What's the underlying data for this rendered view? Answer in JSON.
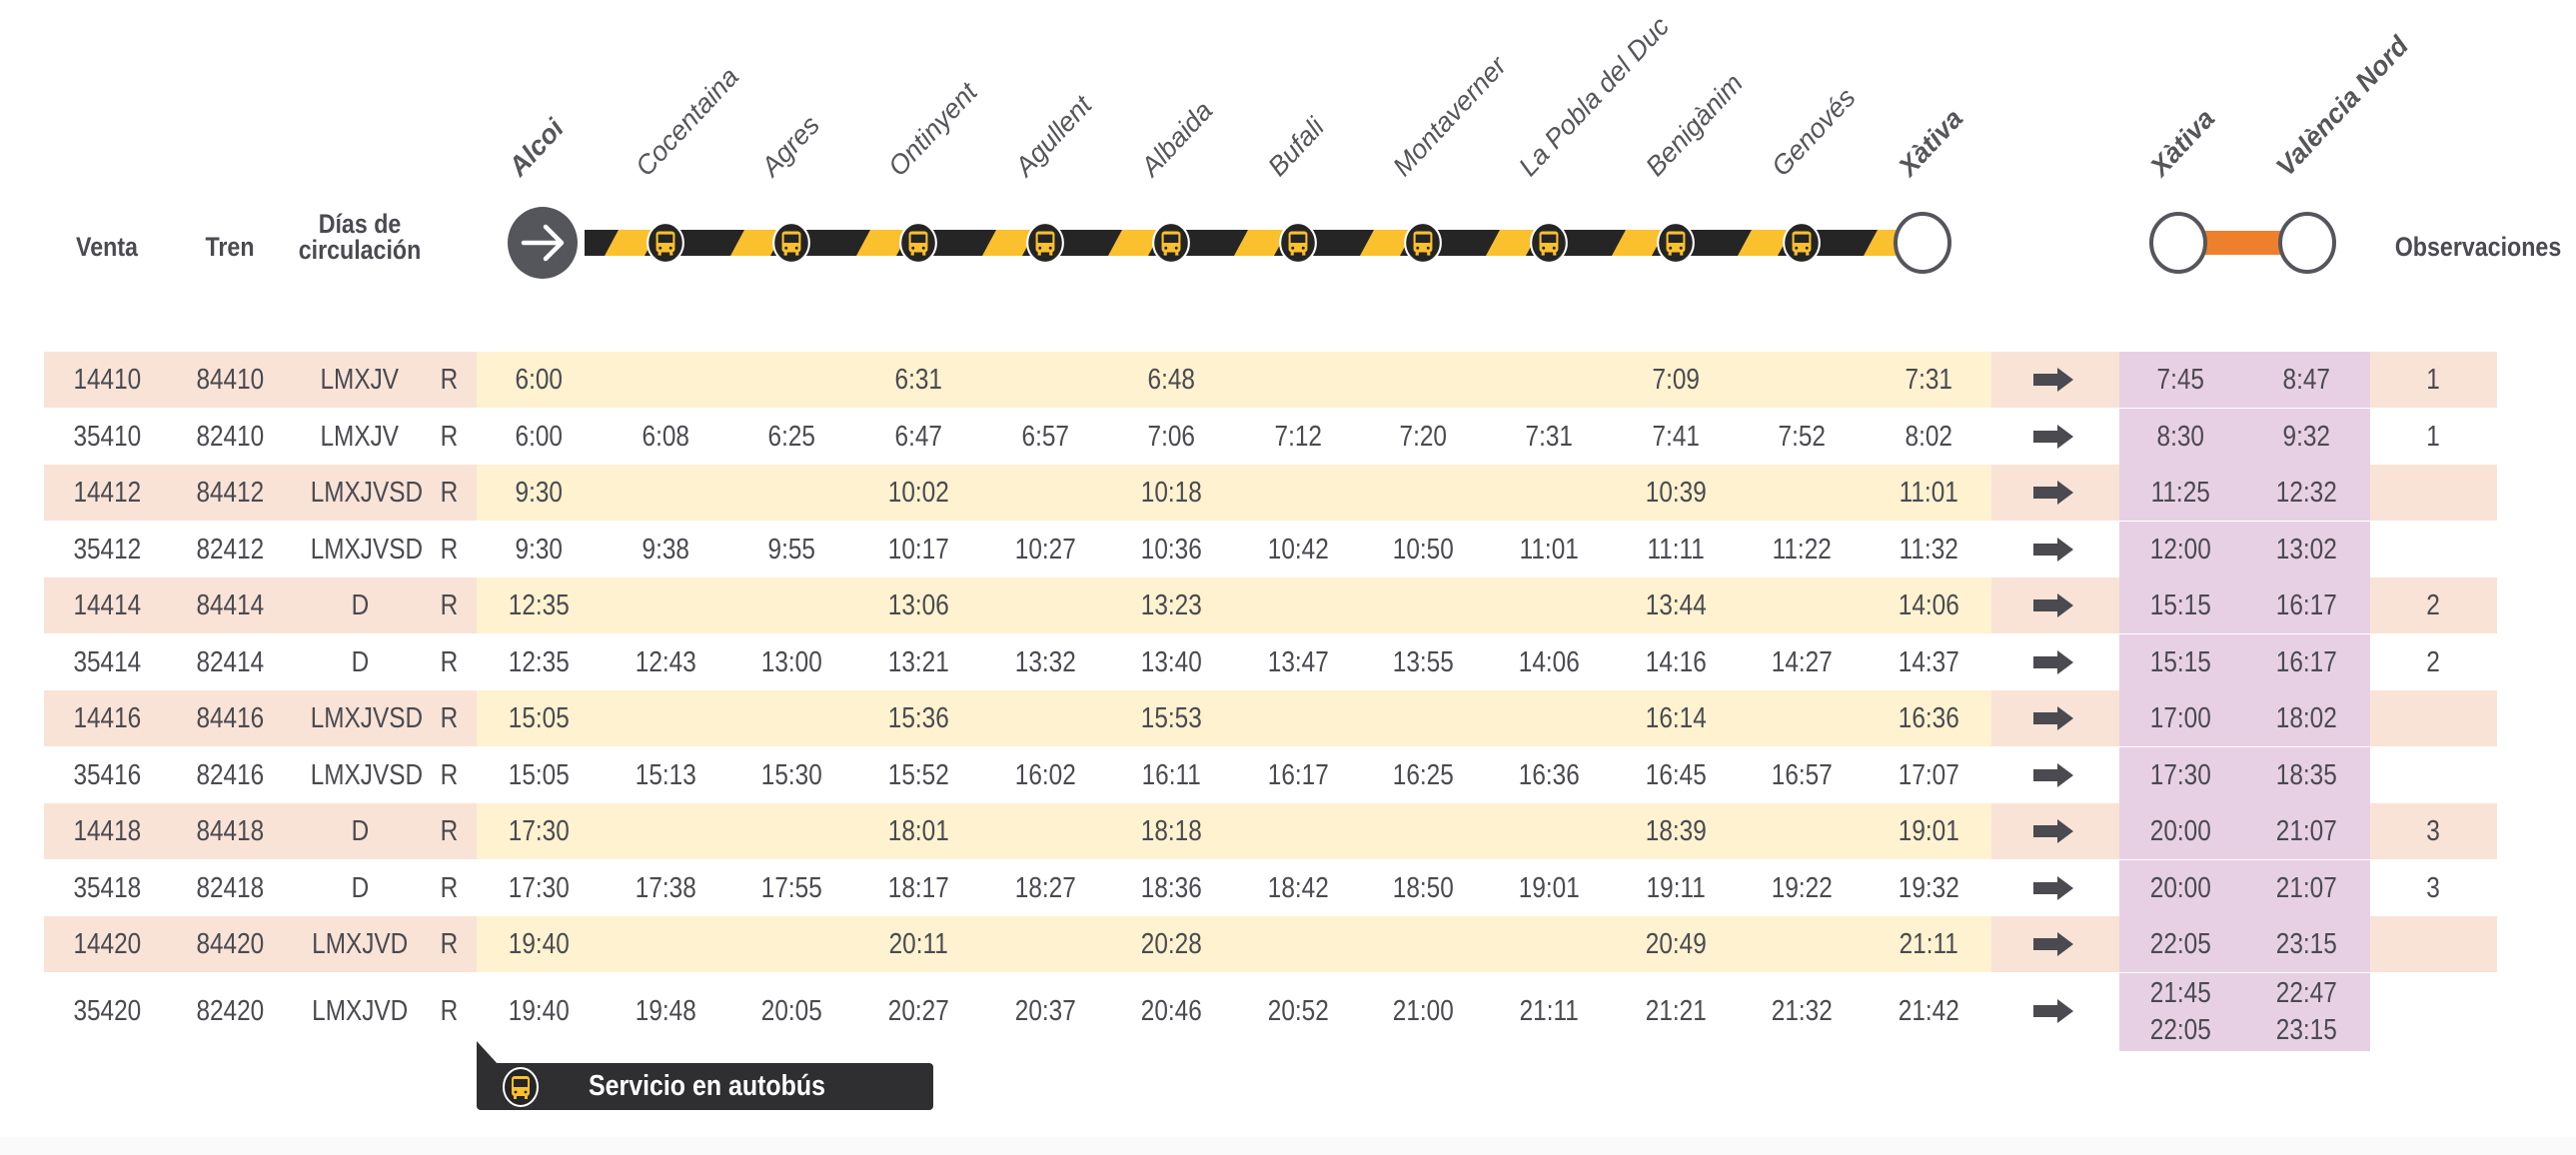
{
  "headers": {
    "venta": "Venta",
    "tren": "Tren",
    "dias_line1": "Días de",
    "dias_line2": "circulación",
    "observaciones": "Observaciones"
  },
  "stations": [
    {
      "name": "Alcoi",
      "bold": true
    },
    {
      "name": "Cocentaina",
      "bold": false
    },
    {
      "name": "Agres",
      "bold": false
    },
    {
      "name": "Ontinyent",
      "bold": false
    },
    {
      "name": "Agullent",
      "bold": false
    },
    {
      "name": "Albaida",
      "bold": false
    },
    {
      "name": "Bufali",
      "bold": false
    },
    {
      "name": "Montaverner",
      "bold": false
    },
    {
      "name": "La Pobla del Duc",
      "bold": false
    },
    {
      "name": "Benigànim",
      "bold": false
    },
    {
      "name": "Genovés",
      "bold": false
    },
    {
      "name": "Xàtiva",
      "bold": true
    }
  ],
  "connection_stations": [
    {
      "name": "Xàtiva",
      "bold": true
    },
    {
      "name": "València Nord",
      "bold": true
    }
  ],
  "colors": {
    "bus_yellow": "#fbc02d",
    "bus_black": "#252525",
    "orange_line": "#ee7f2d",
    "bus_row_pink": "#f9e3d7",
    "bus_row_yellow": "#fef2d0",
    "connection_purple": "#e8d0e4",
    "text": "#4a4a50"
  },
  "rows": [
    {
      "type": "bus",
      "venta": "14410",
      "tren": "84410",
      "dias": "LMXJV",
      "r": "R",
      "times": [
        "6:00",
        "",
        "",
        "6:31",
        "",
        "6:48",
        "",
        "",
        "",
        "7:09",
        "",
        "7:31"
      ],
      "xativa": [
        "7:45"
      ],
      "valencia": [
        "8:47"
      ],
      "obs": "1"
    },
    {
      "type": "train",
      "venta": "35410",
      "tren": "82410",
      "dias": "LMXJV",
      "r": "R",
      "times": [
        "6:00",
        "6:08",
        "6:25",
        "6:47",
        "6:57",
        "7:06",
        "7:12",
        "7:20",
        "7:31",
        "7:41",
        "7:52",
        "8:02"
      ],
      "xativa": [
        "8:30"
      ],
      "valencia": [
        "9:32"
      ],
      "obs": "1"
    },
    {
      "type": "bus",
      "venta": "14412",
      "tren": "84412",
      "dias": "LMXJVSD",
      "r": "R",
      "times": [
        "9:30",
        "",
        "",
        "10:02",
        "",
        "10:18",
        "",
        "",
        "",
        "10:39",
        "",
        "11:01"
      ],
      "xativa": [
        "11:25"
      ],
      "valencia": [
        "12:32"
      ],
      "obs": ""
    },
    {
      "type": "train",
      "venta": "35412",
      "tren": "82412",
      "dias": "LMXJVSD",
      "r": "R",
      "times": [
        "9:30",
        "9:38",
        "9:55",
        "10:17",
        "10:27",
        "10:36",
        "10:42",
        "10:50",
        "11:01",
        "11:11",
        "11:22",
        "11:32"
      ],
      "xativa": [
        "12:00"
      ],
      "valencia": [
        "13:02"
      ],
      "obs": ""
    },
    {
      "type": "bus",
      "venta": "14414",
      "tren": "84414",
      "dias": "D",
      "r": "R",
      "times": [
        "12:35",
        "",
        "",
        "13:06",
        "",
        "13:23",
        "",
        "",
        "",
        "13:44",
        "",
        "14:06"
      ],
      "xativa": [
        "15:15"
      ],
      "valencia": [
        "16:17"
      ],
      "obs": "2"
    },
    {
      "type": "train",
      "venta": "35414",
      "tren": "82414",
      "dias": "D",
      "r": "R",
      "times": [
        "12:35",
        "12:43",
        "13:00",
        "13:21",
        "13:32",
        "13:40",
        "13:47",
        "13:55",
        "14:06",
        "14:16",
        "14:27",
        "14:37"
      ],
      "xativa": [
        "15:15"
      ],
      "valencia": [
        "16:17"
      ],
      "obs": "2"
    },
    {
      "type": "bus",
      "venta": "14416",
      "tren": "84416",
      "dias": "LMXJVSD",
      "r": "R",
      "times": [
        "15:05",
        "",
        "",
        "15:36",
        "",
        "15:53",
        "",
        "",
        "",
        "16:14",
        "",
        "16:36"
      ],
      "xativa": [
        "17:00"
      ],
      "valencia": [
        "18:02"
      ],
      "obs": ""
    },
    {
      "type": "train",
      "venta": "35416",
      "tren": "82416",
      "dias": "LMXJVSD",
      "r": "R",
      "times": [
        "15:05",
        "15:13",
        "15:30",
        "15:52",
        "16:02",
        "16:11",
        "16:17",
        "16:25",
        "16:36",
        "16:45",
        "16:57",
        "17:07"
      ],
      "xativa": [
        "17:30"
      ],
      "valencia": [
        "18:35"
      ],
      "obs": ""
    },
    {
      "type": "bus",
      "venta": "14418",
      "tren": "84418",
      "dias": "D",
      "r": "R",
      "times": [
        "17:30",
        "",
        "",
        "18:01",
        "",
        "18:18",
        "",
        "",
        "",
        "18:39",
        "",
        "19:01"
      ],
      "xativa": [
        "20:00"
      ],
      "valencia": [
        "21:07"
      ],
      "obs": "3"
    },
    {
      "type": "train",
      "venta": "35418",
      "tren": "82418",
      "dias": "D",
      "r": "R",
      "times": [
        "17:30",
        "17:38",
        "17:55",
        "18:17",
        "18:27",
        "18:36",
        "18:42",
        "18:50",
        "19:01",
        "19:11",
        "19:22",
        "19:32"
      ],
      "xativa": [
        "20:00"
      ],
      "valencia": [
        "21:07"
      ],
      "obs": "3"
    },
    {
      "type": "bus",
      "venta": "14420",
      "tren": "84420",
      "dias": "LMXJVD",
      "r": "R",
      "times": [
        "19:40",
        "",
        "",
        "20:11",
        "",
        "20:28",
        "",
        "",
        "",
        "20:49",
        "",
        "21:11"
      ],
      "xativa": [
        "22:05"
      ],
      "valencia": [
        "23:15"
      ],
      "obs": ""
    },
    {
      "type": "train",
      "venta": "35420",
      "tren": "82420",
      "dias": "LMXJVD",
      "r": "R",
      "times": [
        "19:40",
        "19:48",
        "20:05",
        "20:27",
        "20:37",
        "20:46",
        "20:52",
        "21:00",
        "21:11",
        "21:21",
        "21:32",
        "21:42"
      ],
      "xativa": [
        "21:45",
        "22:05"
      ],
      "valencia": [
        "22:47",
        "23:15"
      ],
      "obs": ""
    }
  ],
  "legend": {
    "label": "Servicio en autobús",
    "icon": "bus-icon"
  }
}
